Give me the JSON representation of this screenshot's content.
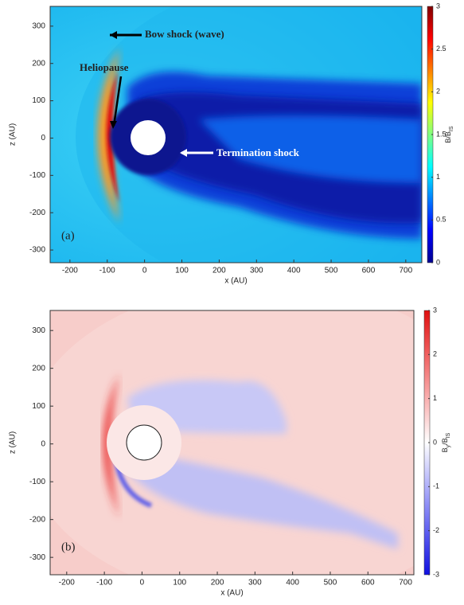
{
  "chart_data": [
    {
      "type": "heatmap",
      "panel_label": "(a)",
      "xlabel": "x (AU)",
      "ylabel": "z (AU)",
      "xlim": [
        -253,
        743
      ],
      "xticks": [
        -200,
        -100,
        0,
        100,
        200,
        300,
        400,
        500,
        600,
        700
      ],
      "ylim": [
        -334,
        353
      ],
      "yticks": [
        -300,
        -200,
        -100,
        0,
        100,
        200,
        300
      ],
      "colorbar_label": "B/B",
      "colorbar_label_sub": "IS",
      "clim": [
        0,
        3
      ],
      "cticks": [
        0,
        0.5,
        1,
        1.5,
        2,
        2.5,
        3
      ],
      "colormap": [
        "#00008f",
        "#0000ff",
        "#0080ff",
        "#00ffff",
        "#80ff80",
        "#ffff00",
        "#ff8000",
        "#ff0000",
        "#800000"
      ],
      "annotations": [
        "Bow shock (wave)",
        "Heliopause",
        "Termination shock"
      ]
    },
    {
      "type": "heatmap",
      "panel_label": "(b)",
      "xlabel": "x (AU)",
      "ylabel": "z (AU)",
      "xlim": [
        -244,
        722
      ],
      "xticks": [
        -200,
        -100,
        0,
        100,
        200,
        300,
        400,
        500,
        600,
        700
      ],
      "ylim": [
        -346,
        353
      ],
      "yticks": [
        -300,
        -200,
        -100,
        0,
        100,
        200,
        300
      ],
      "colorbar_label": "B",
      "colorbar_label_sub": "y",
      "colorbar_label_rest": "/B",
      "colorbar_label_sub2": "IS",
      "clim": [
        -3,
        3
      ],
      "cticks": [
        -3,
        -2,
        -1,
        0,
        1,
        2,
        3
      ],
      "colormap": [
        "#1010e0",
        "#6060f0",
        "#b0b0fa",
        "#ffffff",
        "#fab0b0",
        "#f06060",
        "#e01010"
      ]
    }
  ]
}
